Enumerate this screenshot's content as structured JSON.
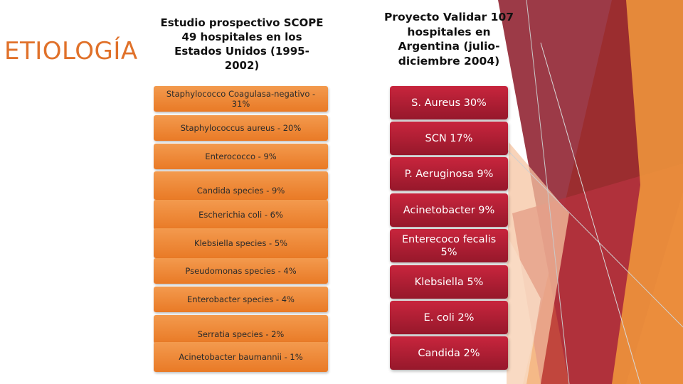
{
  "slide": {
    "title": "ETIOLOGÍA",
    "left_column": {
      "heading": "Estudio prospectivo SCOPE 49 hospitales en los Estados Unidos (1995-2002)",
      "items": [
        "Staphylococco Coagulasa-negativo - 31%",
        "Staphylococcus aureus - 20%",
        "Enterococco - 9%",
        "Candida species - 9%",
        "Escherichia coli - 6%",
        "Klebsiella species - 5%",
        "Pseudomonas species - 4%",
        "Enterobacter species - 4%",
        "Serratia species - 2%",
        "Acinetobacter baumannii - 1%"
      ]
    },
    "right_column": {
      "heading": "Proyecto Validar 107 hospitales en Argentina (julio-diciembre 2004)",
      "items": [
        "S. Aureus 30%",
        "SCN 17%",
        "P. Aeruginosa 9%",
        "Acinetobacter 9%",
        "Enterecoco fecalis 5%",
        "Klebsiella 5%",
        "E. coli 2%",
        "Candida 2%"
      ]
    },
    "colors": {
      "title": "#e0712a",
      "left_box": "#ee8a3a",
      "right_box": "#b01e34",
      "deco_orange": "#f0912f",
      "deco_red": "#8e1f2e"
    }
  }
}
